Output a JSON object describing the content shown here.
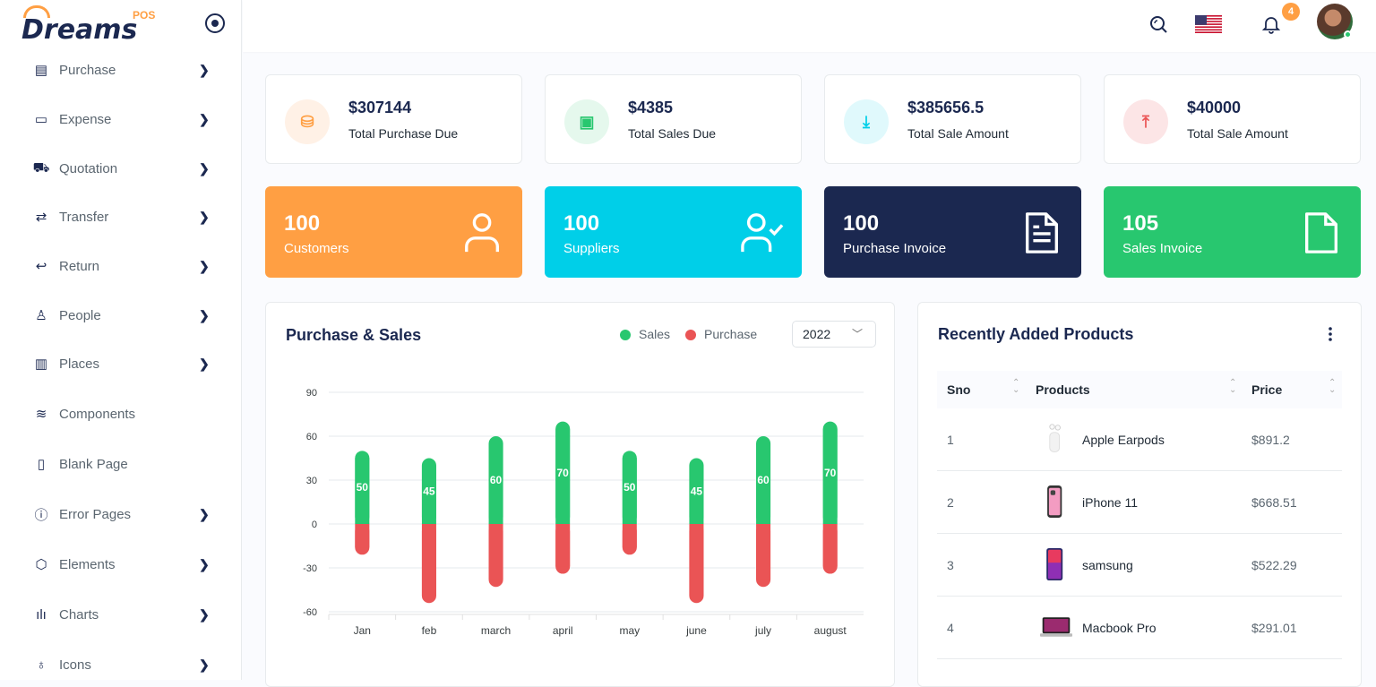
{
  "brand": {
    "name": "Dreams",
    "sub": "POS"
  },
  "sidebar": {
    "items": [
      {
        "label": "Purchase",
        "icon": "receipt-icon",
        "glyph": "▤",
        "chevron": true
      },
      {
        "label": "Expense",
        "icon": "wallet-icon",
        "glyph": "▭",
        "chevron": true
      },
      {
        "label": "Quotation",
        "icon": "cart-icon",
        "glyph": "⛟",
        "chevron": true
      },
      {
        "label": "Transfer",
        "icon": "transfer-icon",
        "glyph": "⇄",
        "chevron": true
      },
      {
        "label": "Return",
        "icon": "return-icon",
        "glyph": "↩",
        "chevron": true
      },
      {
        "label": "People",
        "icon": "user-icon",
        "glyph": "♙",
        "chevron": true
      },
      {
        "label": "Places",
        "icon": "map-icon",
        "glyph": "▥",
        "chevron": true
      },
      {
        "label": "Components",
        "icon": "layers-icon",
        "glyph": "≋",
        "chevron": false
      },
      {
        "label": "Blank Page",
        "icon": "file-icon",
        "glyph": "▯",
        "chevron": false
      },
      {
        "label": "Error Pages",
        "icon": "alert-circle-icon",
        "glyph": "ⓘ",
        "chevron": true
      },
      {
        "label": "Elements",
        "icon": "box-icon",
        "glyph": "⬡",
        "chevron": true
      },
      {
        "label": "Charts",
        "icon": "bar-chart-icon",
        "glyph": "ılı",
        "chevron": true
      },
      {
        "label": "Icons",
        "icon": "award-icon",
        "glyph": "♁",
        "chevron": true
      }
    ]
  },
  "topbar": {
    "notification_count": "4"
  },
  "stats": [
    {
      "value": "$307144",
      "label": "Total Purchase Due",
      "icon": "bag-icon",
      "glyph": "⛁",
      "color": "#ff9f43",
      "bg": "#fff1e6"
    },
    {
      "value": "$4385",
      "label": "Total Sales Due",
      "icon": "cash-icon",
      "glyph": "▣",
      "color": "#28c76f",
      "bg": "#e5f8ed"
    },
    {
      "value": "$385656.5",
      "label": "Total Sale Amount",
      "icon": "download-icon",
      "glyph": "⤓",
      "color": "#00cfe8",
      "bg": "#e0f9fc"
    },
    {
      "value": "$40000",
      "label": "Total Sale Amount",
      "icon": "upload-icon",
      "glyph": "⤒",
      "color": "#ea5455",
      "bg": "#fce5e6"
    }
  ],
  "counts": [
    {
      "value": "100",
      "label": "Customers",
      "icon": "user-icon",
      "color": "#ff9f43"
    },
    {
      "value": "100",
      "label": "Suppliers",
      "icon": "user-check-icon",
      "color": "#00cfe8"
    },
    {
      "value": "100",
      "label": "Purchase Invoice",
      "icon": "file-text-icon",
      "color": "#1b2850"
    },
    {
      "value": "105",
      "label": "Sales Invoice",
      "icon": "file-icon",
      "color": "#28c76f"
    }
  ],
  "chart_card": {
    "title": "Purchase & Sales",
    "year": "2022"
  },
  "chart_data": {
    "type": "bar",
    "categories": [
      "Jan",
      "feb",
      "march",
      "april",
      "may",
      "june",
      "july",
      "august"
    ],
    "series": [
      {
        "name": "Sales",
        "values": [
          50,
          45,
          60,
          70,
          50,
          45,
          60,
          70
        ],
        "color": "#28c76f"
      },
      {
        "name": "Purchase",
        "values": [
          -21,
          -54,
          -43,
          -34,
          -21,
          -54,
          -43,
          -34
        ],
        "color": "#ea5455"
      }
    ],
    "ylim": [
      -60,
      90
    ],
    "yticks": [
      "90",
      "60",
      "30",
      "0",
      "-30",
      "-60"
    ],
    "stacked": true,
    "grid": true,
    "legend": "top-right"
  },
  "products_card": {
    "title": "Recently Added Products",
    "columns": [
      "Sno",
      "Products",
      "Price"
    ],
    "rows": [
      {
        "sno": "1",
        "name": "Apple Earpods",
        "price": "$891.2",
        "thumb": "earpods-image"
      },
      {
        "sno": "2",
        "name": "iPhone 11",
        "price": "$668.51",
        "thumb": "iphone-image"
      },
      {
        "sno": "3",
        "name": "samsung",
        "price": "$522.29",
        "thumb": "samsung-image"
      },
      {
        "sno": "4",
        "name": "Macbook Pro",
        "price": "$291.01",
        "thumb": "macbook-image"
      }
    ]
  }
}
